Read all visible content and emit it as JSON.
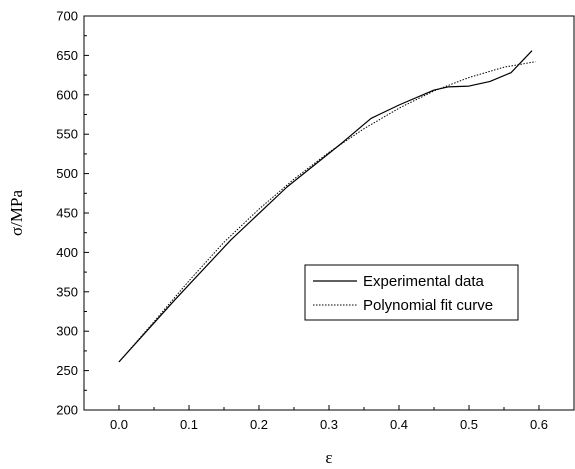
{
  "chart_data": {
    "type": "line",
    "title": "",
    "xlabel": "ε",
    "ylabel": "σ/MPa",
    "xlim": [
      -0.05,
      0.65
    ],
    "ylim": [
      200,
      700
    ],
    "xticks": [
      0.0,
      0.1,
      0.2,
      0.3,
      0.4,
      0.5,
      0.6
    ],
    "xtick_labels": [
      "0.0",
      "0.1",
      "0.2",
      "0.3",
      "0.4",
      "0.5",
      "0.6"
    ],
    "yticks": [
      200,
      250,
      300,
      350,
      400,
      450,
      500,
      550,
      600,
      650,
      700
    ],
    "ytick_labels": [
      "200",
      "250",
      "300",
      "350",
      "400",
      "450",
      "500",
      "550",
      "600",
      "650",
      "700"
    ],
    "grid": false,
    "legend_position": "center-right",
    "series": [
      {
        "name": "Experimental data",
        "style": "solid",
        "x": [
          0.0,
          0.08,
          0.16,
          0.24,
          0.32,
          0.36,
          0.4,
          0.45,
          0.47,
          0.5,
          0.53,
          0.56,
          0.59
        ],
        "y": [
          261,
          340,
          416,
          483,
          540,
          570,
          587,
          606,
          610,
          611,
          617,
          628,
          656
        ]
      },
      {
        "name": "Polynomial fit curve",
        "style": "dotted",
        "x": [
          0.0,
          0.05,
          0.1,
          0.15,
          0.2,
          0.25,
          0.3,
          0.35,
          0.4,
          0.45,
          0.5,
          0.55,
          0.595
        ],
        "y": [
          261,
          312,
          364,
          413,
          455,
          493,
          527,
          557,
          583,
          605,
          622,
          635,
          642
        ]
      }
    ]
  }
}
